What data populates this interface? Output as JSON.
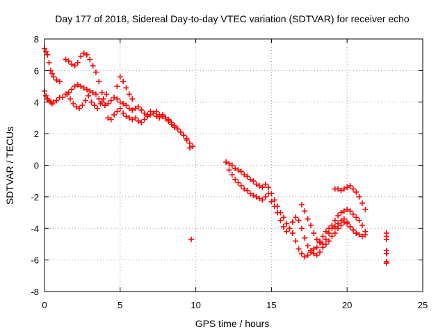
{
  "chart_data": {
    "type": "scatter",
    "title": "Day 177 of 2018, Sidereal Day-to-day VTEC variation (SDTVAR) for receiver echo",
    "xlabel": "GPS time / hours",
    "ylabel": "SDTVAR / TECUs",
    "xlim": [
      0,
      25
    ],
    "ylim": [
      -8,
      8
    ],
    "xticks": [
      0,
      5,
      10,
      15,
      20,
      25
    ],
    "yticks": [
      -8,
      -6,
      -4,
      -2,
      0,
      2,
      4,
      6,
      8
    ],
    "xtick_labels": [
      "0",
      "5",
      "10",
      "15",
      "20",
      "25"
    ],
    "ytick_labels": [
      "-8",
      "-6",
      "-4",
      "-2",
      "0",
      "2",
      "4",
      "6",
      "8"
    ],
    "grid": true,
    "marker": "+",
    "series": [
      {
        "name": "SDTVAR",
        "color": "#ff0000",
        "x": [
          0.0,
          0.1,
          0.2,
          0.3,
          0.4,
          0.5,
          0.6,
          0.8,
          1.0,
          0.0,
          0.1,
          0.2,
          0.3,
          0.4,
          0.5,
          0.6,
          0.8,
          1.0,
          1.2,
          1.4,
          1.6,
          1.8,
          2.0,
          2.2,
          2.4,
          2.6,
          2.8,
          3.0,
          3.2,
          3.4,
          3.6,
          3.8,
          4.0,
          4.2,
          4.4,
          4.6,
          4.8,
          5.0,
          5.2,
          5.4,
          5.6,
          5.8,
          6.0,
          6.2,
          6.4,
          6.6,
          6.8,
          7.0,
          7.2,
          7.4,
          7.6,
          7.8,
          8.0,
          8.2,
          8.4,
          8.6,
          8.8,
          9.0,
          9.2,
          9.4,
          9.6,
          9.8,
          1.4,
          1.6,
          1.8,
          2.0,
          2.2,
          2.4,
          2.6,
          2.8,
          3.0,
          3.2,
          3.4,
          3.6,
          3.8,
          4.0,
          4.2,
          4.4,
          4.6,
          4.8,
          5.0,
          5.2,
          5.4,
          5.6,
          5.8,
          6.0,
          6.2,
          6.4,
          6.6,
          6.8,
          7.0,
          7.2,
          7.4,
          7.6,
          7.8,
          8.0,
          8.2,
          8.4,
          8.6,
          8.8,
          9.0,
          9.2,
          9.4,
          9.6,
          1.5,
          1.7,
          1.9,
          2.1,
          2.3,
          2.5,
          2.7,
          2.9,
          3.1,
          3.3,
          3.5,
          3.7,
          3.9,
          4.1,
          4.8,
          5.0,
          5.2,
          5.4,
          5.6,
          5.8,
          9.7,
          12.0,
          12.2,
          12.4,
          12.6,
          12.8,
          13.0,
          13.2,
          13.4,
          13.6,
          13.8,
          14.0,
          14.2,
          14.4,
          14.6,
          14.8,
          15.0,
          15.2,
          15.4,
          15.6,
          15.8,
          16.0,
          16.2,
          16.4,
          16.6,
          16.8,
          17.0,
          17.2,
          17.4,
          17.6,
          17.8,
          18.0,
          18.2,
          18.4,
          18.6,
          18.8,
          19.0,
          19.2,
          19.4,
          19.6,
          19.8,
          20.0,
          20.2,
          20.4,
          20.6,
          20.8,
          21.0,
          21.2,
          12.2,
          12.4,
          12.6,
          12.8,
          13.0,
          13.2,
          13.4,
          13.6,
          13.8,
          14.0,
          14.2,
          14.4,
          14.6,
          14.8,
          15.0,
          15.2,
          15.4,
          15.6,
          15.8,
          16.0,
          16.2,
          16.4,
          16.6,
          16.8,
          17.0,
          17.2,
          17.4,
          17.6,
          17.8,
          18.0,
          18.2,
          18.4,
          18.6,
          18.8,
          19.0,
          19.2,
          19.4,
          19.6,
          19.8,
          20.0,
          20.2,
          20.4,
          20.6,
          20.8,
          21.0,
          21.2,
          17.0,
          17.2,
          17.4,
          17.6,
          17.8,
          18.0,
          18.2,
          18.4,
          18.6,
          18.8,
          19.0,
          19.2,
          19.4,
          19.6,
          19.8,
          20.0,
          20.2,
          20.4,
          20.6,
          19.2,
          19.4,
          19.6,
          19.8,
          20.0,
          20.2,
          20.4,
          20.6,
          20.8,
          21.0,
          21.2,
          22.6,
          22.6,
          22.6,
          22.6,
          22.6,
          22.6,
          22.6
        ],
        "y": [
          7.4,
          7.2,
          7.0,
          6.5,
          6.0,
          5.8,
          5.6,
          5.4,
          5.3,
          4.7,
          4.4,
          4.2,
          4.1,
          4.0,
          3.9,
          4.0,
          4.1,
          4.3,
          4.3,
          4.5,
          4.6,
          4.8,
          5.0,
          5.1,
          5.0,
          4.9,
          4.8,
          4.7,
          4.6,
          4.5,
          4.2,
          4.0,
          3.8,
          3.9,
          4.1,
          4.3,
          4.2,
          4.0,
          3.9,
          3.8,
          3.6,
          3.5,
          3.6,
          3.7,
          3.5,
          3.3,
          3.2,
          3.4,
          3.3,
          3.1,
          3.0,
          3.2,
          3.0,
          2.8,
          2.6,
          2.4,
          2.3,
          2.1,
          1.9,
          1.7,
          1.4,
          1.2,
          6.7,
          6.6,
          6.4,
          6.3,
          6.5,
          6.9,
          7.1,
          7.0,
          6.7,
          6.3,
          5.9,
          5.3,
          4.6,
          3.8,
          3.0,
          2.9,
          3.2,
          3.4,
          3.6,
          3.3,
          3.1,
          3.0,
          2.9,
          3.0,
          2.8,
          2.7,
          2.9,
          3.1,
          3.2,
          3.3,
          3.4,
          3.2,
          3.1,
          3.0,
          2.9,
          2.7,
          2.5,
          2.3,
          2.1,
          1.9,
          1.6,
          1.1,
          4.5,
          4.2,
          3.9,
          3.7,
          3.6,
          3.8,
          4.1,
          4.4,
          4.0,
          3.8,
          3.6,
          3.9,
          4.2,
          4.5,
          5.0,
          5.6,
          5.3,
          4.9,
          4.5,
          4.2,
          -4.7,
          0.2,
          0.1,
          0.0,
          -0.2,
          -0.3,
          -0.4,
          -0.6,
          -0.7,
          -0.9,
          -1.0,
          -1.2,
          -1.3,
          -1.4,
          -1.2,
          -1.4,
          -1.8,
          -2.2,
          -2.6,
          -3.0,
          -3.3,
          -3.7,
          -4.0,
          -4.3,
          -4.8,
          -5.3,
          -5.6,
          -5.8,
          -5.7,
          -5.5,
          -5.3,
          -5.2,
          -4.8,
          -4.5,
          -4.2,
          -4.0,
          -3.8,
          -3.5,
          -3.2,
          -3.0,
          -2.9,
          -2.8,
          -2.9,
          -3.1,
          -3.3,
          -3.5,
          -3.8,
          -4.2,
          -0.3,
          -0.6,
          -0.9,
          -1.1,
          -1.3,
          -1.5,
          -1.6,
          -1.8,
          -1.9,
          -2.0,
          -2.1,
          -2.2,
          -2.0,
          -1.8,
          -2.3,
          -2.6,
          -3.0,
          -3.5,
          -3.9,
          -4.2,
          -4.0,
          -3.6,
          -3.3,
          -3.5,
          -4.0,
          -4.6,
          -5.1,
          -5.4,
          -5.6,
          -5.7,
          -5.5,
          -5.2,
          -5.0,
          -4.8,
          -4.5,
          -4.3,
          -4.0,
          -3.8,
          -3.6,
          -3.7,
          -3.9,
          -4.1,
          -4.3,
          -4.4,
          -4.5,
          -4.4,
          -2.5,
          -2.9,
          -3.4,
          -3.8,
          -4.3,
          -4.7,
          -4.9,
          -5.0,
          -4.7,
          -4.3,
          -4.0,
          -3.9,
          -3.7,
          -3.5,
          -3.4,
          -3.6,
          -3.9,
          -4.1,
          -4.3,
          -1.5,
          -1.5,
          -1.6,
          -1.5,
          -1.4,
          -1.3,
          -1.5,
          -1.7,
          -2.0,
          -2.4,
          -2.8,
          -4.3,
          -4.5,
          -4.7,
          -5.4,
          -5.6,
          -6.1,
          -6.2
        ]
      }
    ]
  }
}
